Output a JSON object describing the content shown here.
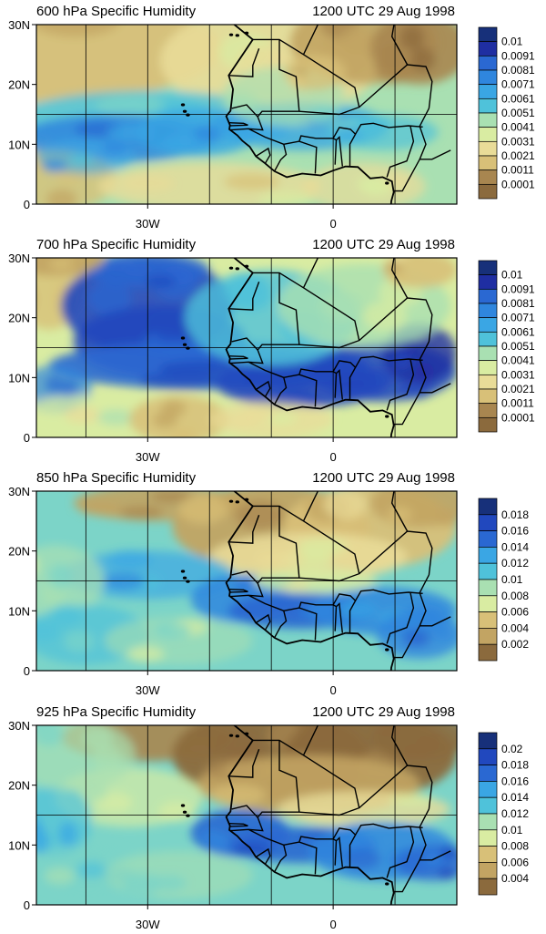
{
  "colors": {
    "palette": [
      "#8b6a3d",
      "#a88650",
      "#c2a463",
      "#d8c078",
      "#e9dc98",
      "#d9eca2",
      "#a9e0b2",
      "#7cd4c8",
      "#4fc2da",
      "#3aa6e4",
      "#2f86de",
      "#2a68d2",
      "#2148be",
      "#1f2ea2",
      "#17307a"
    ],
    "coast": "#000000",
    "grid": "#000000"
  },
  "panels": [
    {
      "title": "600 hPa Specific Humidity",
      "time": "1200 UTC 29 Aug 1998",
      "y_ticks": [
        "30N",
        "20N",
        "10N",
        "0"
      ],
      "x_ticks": [
        "30W",
        "0"
      ],
      "colorbar": [
        "0.01",
        "0.0091",
        "0.0081",
        "0.0071",
        "0.0061",
        "0.0051",
        "0.0041",
        "0.0031",
        "0.0021",
        "0.0011",
        "0.0001"
      ]
    },
    {
      "title": "700 hPa Specific Humidity",
      "time": "1200 UTC 29 Aug 1998",
      "y_ticks": [
        "30N",
        "20N",
        "10N",
        "0"
      ],
      "x_ticks": [
        "30W",
        "0"
      ],
      "colorbar": [
        "0.01",
        "0.0091",
        "0.0081",
        "0.0071",
        "0.0061",
        "0.0051",
        "0.0041",
        "0.0031",
        "0.0021",
        "0.0011",
        "0.0001"
      ]
    },
    {
      "title": "850 hPa Specific Humidity",
      "time": "1200 UTC 29 Aug 1998",
      "y_ticks": [
        "30N",
        "20N",
        "10N",
        "0"
      ],
      "x_ticks": [
        "30W",
        "0"
      ],
      "colorbar": [
        "0.018",
        "0.016",
        "0.014",
        "0.012",
        "0.01",
        "0.008",
        "0.006",
        "0.004",
        "0.002"
      ]
    },
    {
      "title": "925 hPa Specific Humidity",
      "time": "1200 UTC 29 Aug 1998",
      "y_ticks": [
        "30N",
        "20N",
        "10N",
        "0"
      ],
      "x_ticks": [
        "30W",
        "0"
      ],
      "colorbar": [
        "0.02",
        "0.018",
        "0.016",
        "0.014",
        "0.012",
        "0.01",
        "0.008",
        "0.006",
        "0.004"
      ]
    }
  ]
}
